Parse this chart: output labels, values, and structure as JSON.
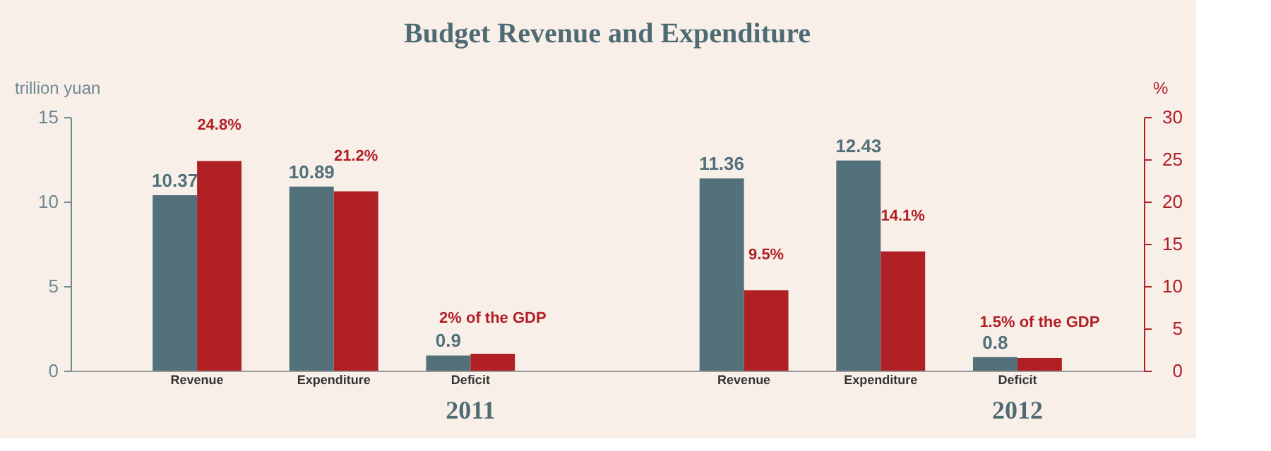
{
  "chart_data": {
    "type": "bar",
    "title": "Budget Revenue and Expenditure",
    "categories": [
      "Revenue",
      "Expenditure",
      "Deficit",
      null,
      "Revenue",
      "Expenditure",
      "Deficit"
    ],
    "series": [
      {
        "color": "#52717b",
        "values": [
          10.37,
          10.89,
          0.9,
          null,
          11.36,
          12.43,
          0.8
        ],
        "value_labels": [
          "10.37",
          "10.89",
          "0.9",
          null,
          "11.36",
          "12.43",
          "0.8"
        ]
      },
      {
        "color": "#b01f24",
        "axis": "y2",
        "values": [
          24.8,
          21.2,
          2,
          null,
          9.5,
          14.1,
          1.5
        ],
        "value_labels": [
          "24.8%",
          "21.2%",
          "2% of the GDP",
          null,
          "9.5%",
          "14.1%",
          "1.5% of the GDP"
        ]
      }
    ],
    "ylabel": "trillion yuan",
    "y2label": "%",
    "ylim": [
      0,
      15
    ],
    "yticks": [
      0,
      5,
      10,
      15
    ],
    "y2lim": [
      0,
      30
    ],
    "y2ticks": [
      0,
      5,
      10,
      15,
      20,
      25,
      30
    ],
    "annotations": [
      "2011",
      "2012"
    ],
    "grid": false
  }
}
